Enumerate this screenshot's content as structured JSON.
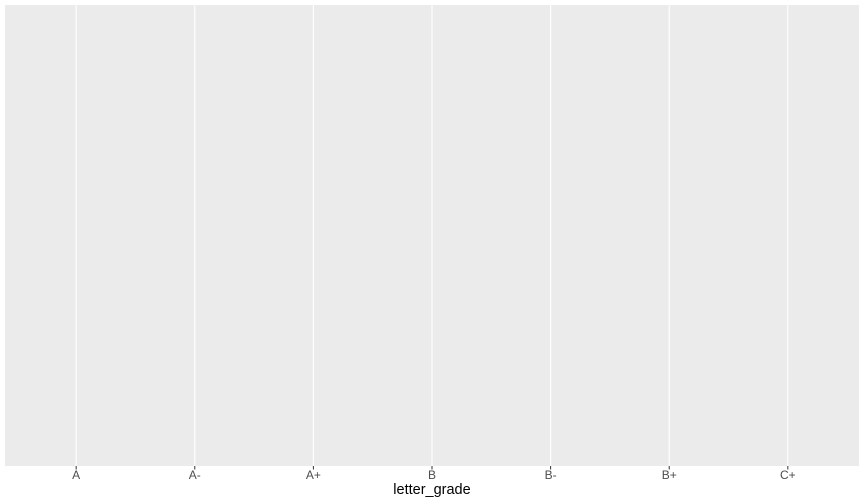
{
  "chart_data": {
    "type": "blank",
    "x_label": "letter_grade",
    "categories": [
      "A",
      "A-",
      "A+",
      "B",
      "B-",
      "B+",
      "C+"
    ],
    "grid": true,
    "panel_color": "#ebebeb",
    "grid_color": "#ffffff"
  }
}
